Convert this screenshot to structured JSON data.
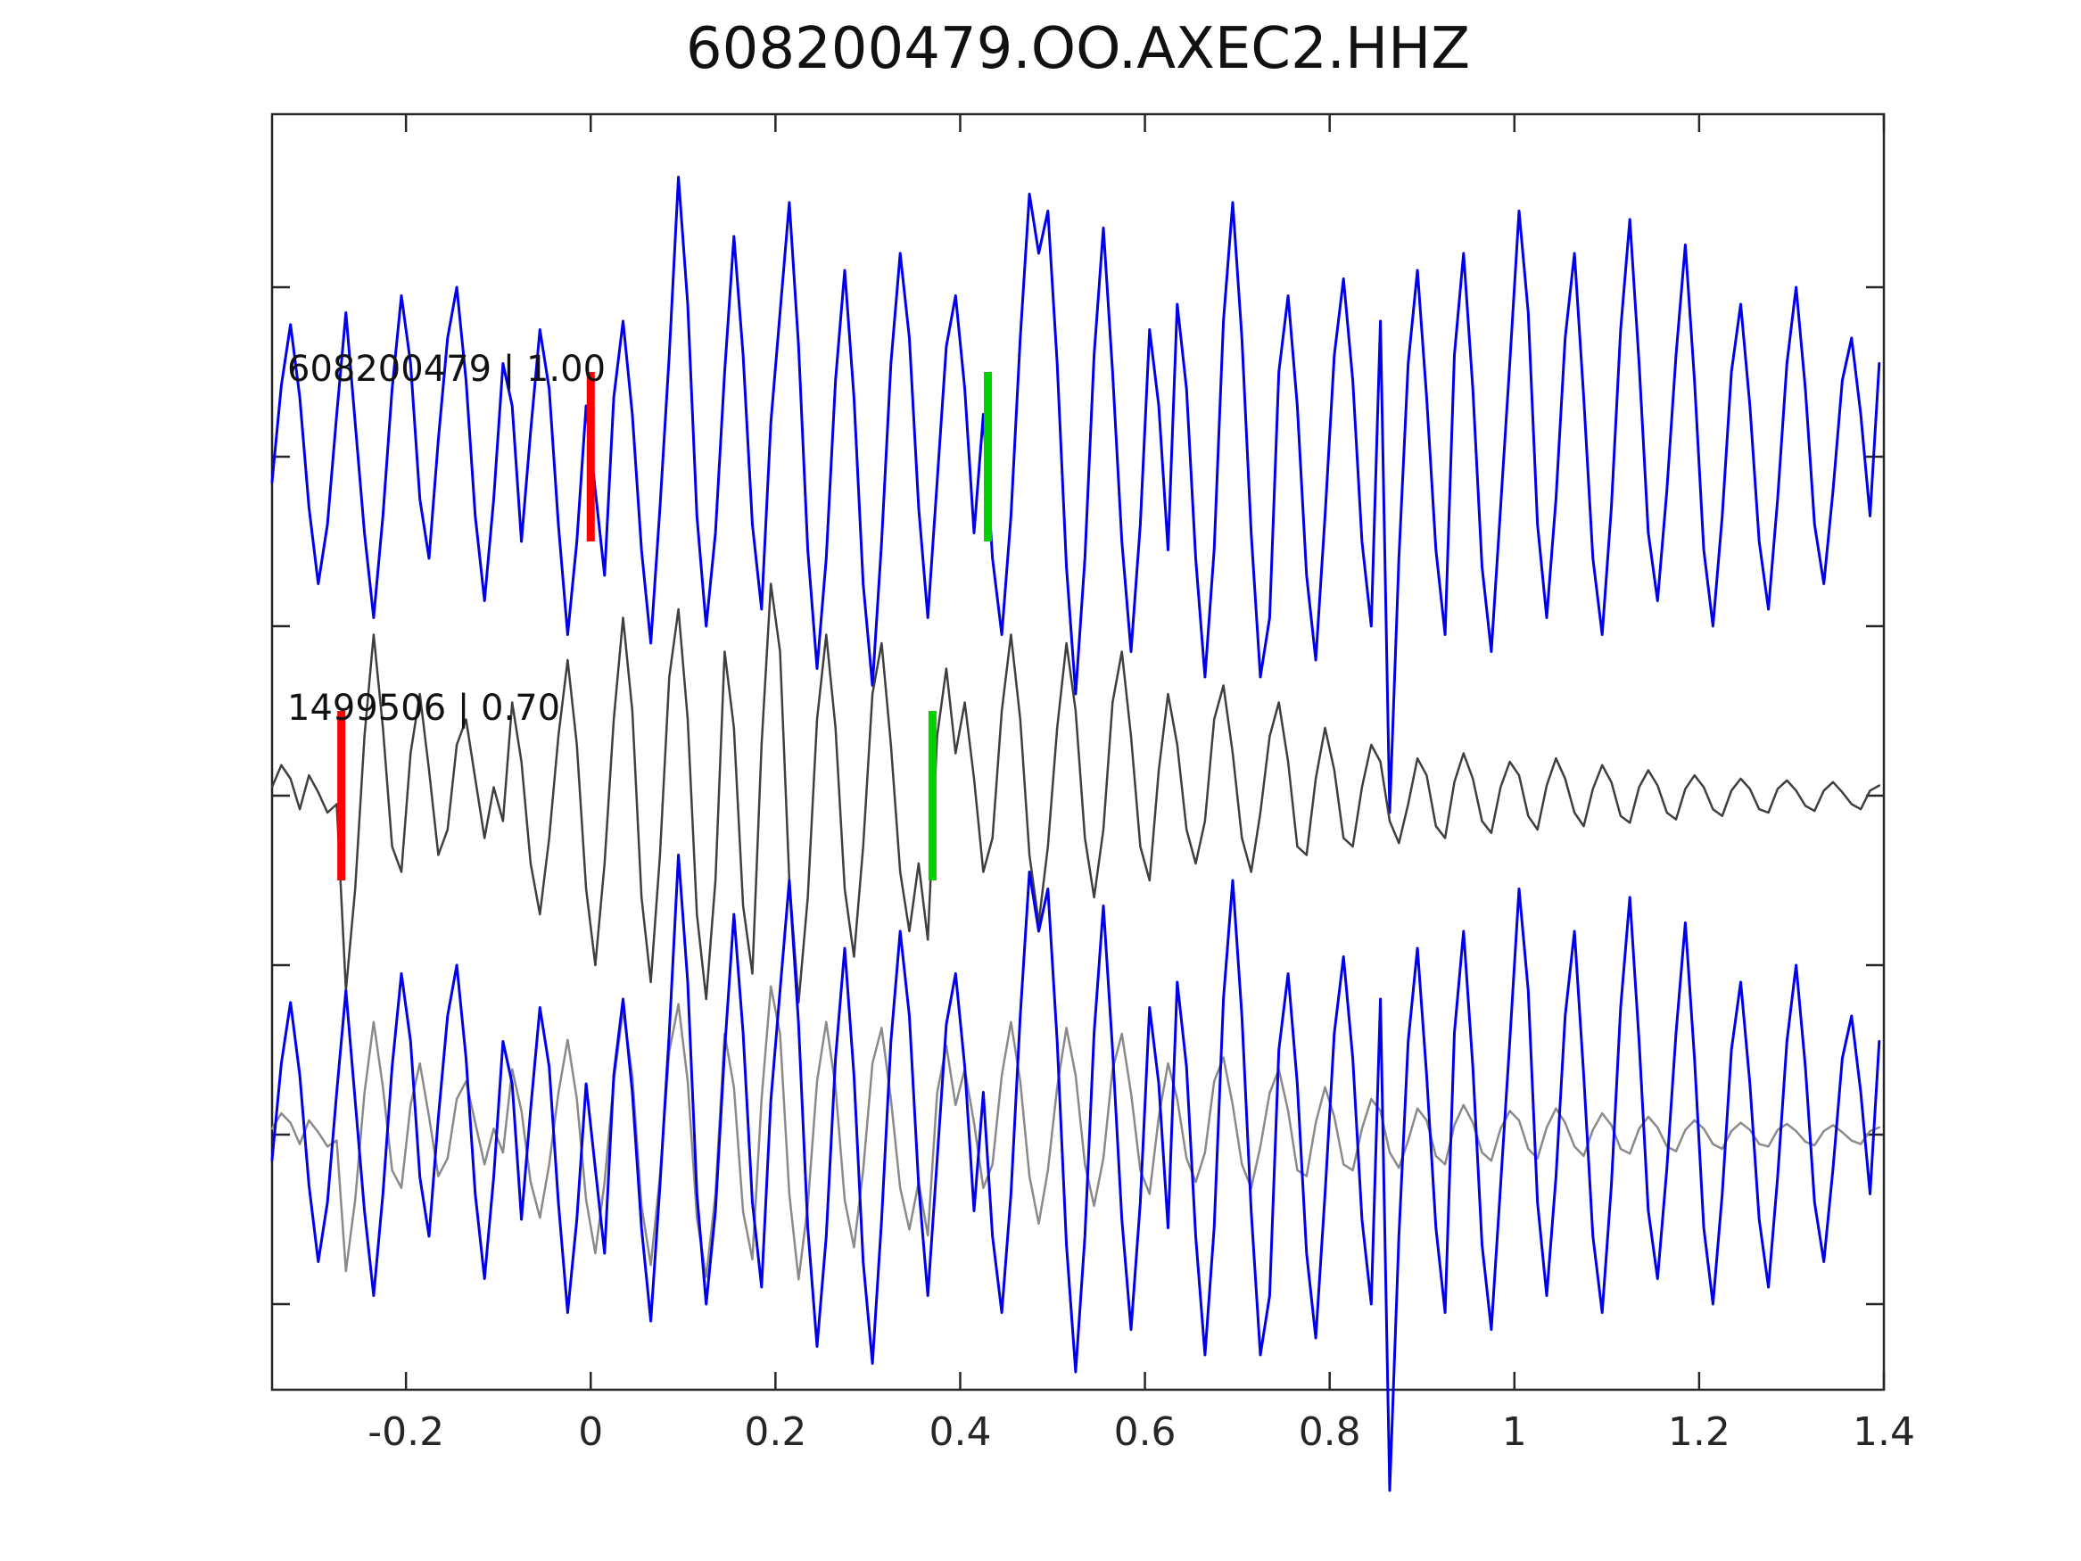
{
  "title": "608200479.OO.AXEC2.HHZ",
  "colors": {
    "detection_trace": "#0000ee",
    "template_trace": "#3f3f3f",
    "template_overlay_trace": "#8a8a8a",
    "pick_red": "#ff0000",
    "pick_green": "#00cf00",
    "spine": "#262626",
    "tick_label": "#262626",
    "background": "#ffffff"
  },
  "chart_data": {
    "type": "line",
    "title": "608200479.OO.AXEC2.HHZ",
    "xlabel": "",
    "ylabel": "",
    "xlim": [
      -0.345,
      1.4
    ],
    "grid": false,
    "legend_position": "none",
    "xticks": [
      -0.2,
      0,
      0.2,
      0.4,
      0.6,
      0.8,
      1,
      1.2,
      1.4
    ],
    "xtick_labels": [
      "-0.2",
      "0",
      "0.2",
      "0.4",
      "0.6",
      "0.8",
      "1",
      "1.2",
      "1.4"
    ],
    "ytick_offsets": [
      3,
      2,
      1,
      0,
      -1,
      -2,
      -3
    ],
    "ytick_labels": [
      "",
      "",
      "",
      "",
      "",
      "",
      ""
    ],
    "x": {
      "start": -0.345,
      "step": 0.01,
      "n": 175
    },
    "panels": [
      {
        "name": "detection",
        "label": "608200479 | 1.00",
        "event_id": "608200479",
        "correlation": "1.00",
        "baseline_offset": 2,
        "series": [
          {
            "ref": "detection_wave",
            "color": "#0000ee",
            "scale": 1.0,
            "width": 3
          }
        ],
        "picks": [
          {
            "color": "#ff0000",
            "time": 0.0
          },
          {
            "color": "#00cf00",
            "time": 0.43
          }
        ]
      },
      {
        "name": "template",
        "label": "1499506 | 0.70",
        "event_id": "1499506",
        "correlation": "0.70",
        "baseline_offset": 0,
        "series": [
          {
            "ref": "template_wave",
            "color": "#3f3f3f",
            "scale": 1.0,
            "width": 2.5
          }
        ],
        "picks": [
          {
            "color": "#ff0000",
            "time": -0.27
          },
          {
            "color": "#00cf00",
            "time": 0.37
          }
        ]
      },
      {
        "name": "overlay",
        "label": "",
        "baseline_offset": -2,
        "series": [
          {
            "ref": "template_wave",
            "color": "#8a8a8a",
            "scale": 0.7,
            "width": 2.5
          },
          {
            "ref": "detection_wave",
            "color": "#0000ee",
            "scale": 1.0,
            "width": 3
          }
        ],
        "picks": []
      }
    ],
    "waves": {
      "detection_wave": [
        -0.15,
        0.42,
        0.78,
        0.35,
        -0.3,
        -0.75,
        -0.4,
        0.25,
        0.85,
        0.2,
        -0.45,
        -0.95,
        -0.35,
        0.4,
        0.95,
        0.55,
        -0.25,
        -0.6,
        0.1,
        0.7,
        1.0,
        0.45,
        -0.35,
        -0.85,
        -0.25,
        0.55,
        0.3,
        -0.5,
        0.15,
        0.75,
        0.4,
        -0.4,
        -1.05,
        -0.5,
        0.3,
        -0.2,
        -0.7,
        0.35,
        0.8,
        0.25,
        -0.55,
        -1.1,
        -0.3,
        0.6,
        1.65,
        0.9,
        -0.35,
        -1.0,
        -0.45,
        0.5,
        1.3,
        0.6,
        -0.4,
        -0.9,
        0.2,
        0.85,
        1.5,
        0.65,
        -0.55,
        -1.25,
        -0.6,
        0.45,
        1.1,
        0.35,
        -0.75,
        -1.35,
        -0.5,
        0.55,
        1.2,
        0.7,
        -0.3,
        -0.95,
        -0.15,
        0.65,
        0.95,
        0.4,
        -0.45,
        0.25,
        -0.6,
        -1.05,
        -0.35,
        0.7,
        1.55,
        1.2,
        1.45,
        0.55,
        -0.65,
        -1.4,
        -0.6,
        0.6,
        1.35,
        0.5,
        -0.5,
        -1.15,
        -0.4,
        0.75,
        0.3,
        -0.55,
        0.9,
        0.4,
        -0.6,
        -1.3,
        -0.55,
        0.8,
        1.5,
        0.7,
        -0.45,
        -1.3,
        -0.95,
        0.5,
        0.95,
        0.3,
        -0.7,
        -1.2,
        -0.35,
        0.6,
        1.05,
        0.45,
        -0.5,
        -1.0,
        0.8,
        -2.1,
        -0.6,
        0.55,
        1.1,
        0.35,
        -0.55,
        -1.05,
        0.6,
        1.2,
        0.4,
        -0.65,
        -1.15,
        -0.3,
        0.55,
        1.45,
        0.85,
        -0.4,
        -0.95,
        -0.25,
        0.7,
        1.2,
        0.35,
        -0.6,
        -1.05,
        -0.3,
        0.75,
        1.4,
        0.55,
        -0.45,
        -0.85,
        -0.2,
        0.6,
        1.25,
        0.45,
        -0.55,
        -1.0,
        -0.35,
        0.5,
        0.9,
        0.3,
        -0.5,
        -0.9,
        -0.25,
        0.55,
        1.0,
        0.4,
        -0.4,
        -0.75,
        -0.2,
        0.45,
        0.7,
        0.25,
        -0.35,
        0.55
      ],
      "template_wave": [
        0.05,
        0.18,
        0.1,
        -0.08,
        0.12,
        0.02,
        -0.1,
        -0.05,
        -1.15,
        -0.55,
        0.35,
        0.95,
        0.4,
        -0.3,
        -0.45,
        0.25,
        0.6,
        0.15,
        -0.35,
        -0.2,
        0.3,
        0.45,
        0.1,
        -0.25,
        0.05,
        -0.15,
        0.55,
        0.2,
        -0.4,
        -0.7,
        -0.25,
        0.35,
        0.8,
        0.3,
        -0.55,
        -1.0,
        -0.4,
        0.45,
        1.05,
        0.5,
        -0.6,
        -1.1,
        -0.35,
        0.7,
        1.1,
        0.45,
        -0.7,
        -1.2,
        -0.5,
        0.85,
        0.4,
        -0.65,
        -1.05,
        0.3,
        1.25,
        0.85,
        -0.5,
        -1.22,
        -0.6,
        0.45,
        0.95,
        0.4,
        -0.55,
        -0.95,
        -0.3,
        0.6,
        0.9,
        0.3,
        -0.45,
        -0.8,
        -0.4,
        -0.85,
        0.35,
        0.75,
        0.25,
        0.55,
        0.1,
        -0.45,
        -0.25,
        0.5,
        0.95,
        0.45,
        -0.35,
        -0.75,
        -0.3,
        0.4,
        0.9,
        0.5,
        -0.25,
        -0.6,
        -0.2,
        0.55,
        0.85,
        0.35,
        -0.3,
        -0.5,
        0.15,
        0.6,
        0.3,
        -0.2,
        -0.4,
        -0.15,
        0.45,
        0.65,
        0.25,
        -0.25,
        -0.45,
        -0.1,
        0.35,
        0.55,
        0.2,
        -0.3,
        -0.35,
        0.1,
        0.4,
        0.15,
        -0.25,
        -0.3,
        0.05,
        0.3,
        0.2,
        -0.15,
        -0.28,
        -0.05,
        0.22,
        0.12,
        -0.18,
        -0.25,
        0.08,
        0.25,
        0.1,
        -0.15,
        -0.22,
        0.05,
        0.2,
        0.12,
        -0.12,
        -0.2,
        0.06,
        0.22,
        0.1,
        -0.1,
        -0.18,
        0.04,
        0.18,
        0.08,
        -0.12,
        -0.16,
        0.05,
        0.15,
        0.06,
        -0.1,
        -0.14,
        0.04,
        0.12,
        0.05,
        -0.08,
        -0.12,
        0.03,
        0.1,
        0.04,
        -0.08,
        -0.1,
        0.04,
        0.09,
        0.03,
        -0.06,
        -0.09,
        0.03,
        0.08,
        0.02,
        -0.05,
        -0.08,
        0.03,
        0.06
      ]
    }
  }
}
